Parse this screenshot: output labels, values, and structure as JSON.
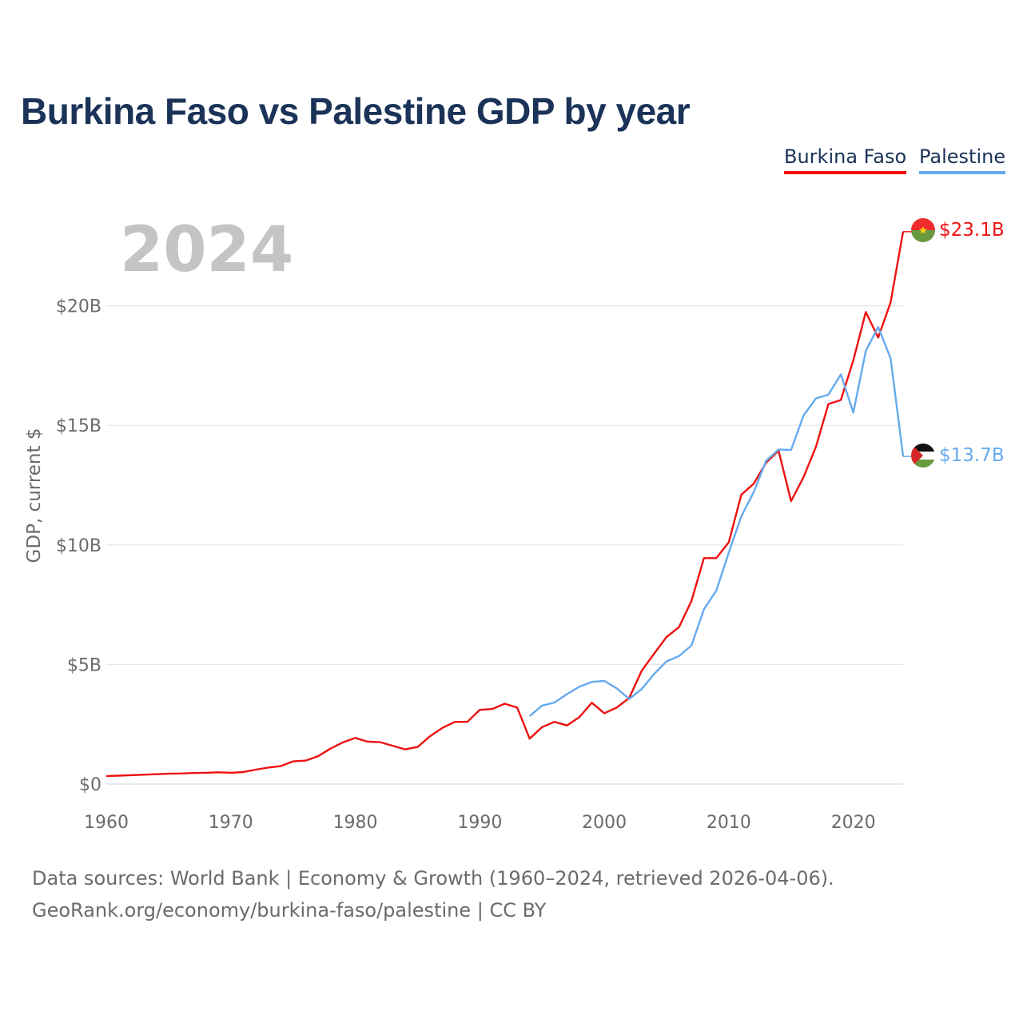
{
  "chart_data": {
    "type": "line",
    "title": "Burkina Faso vs Palestine GDP by year",
    "ylabel": "GDP, current $",
    "xlabel": "",
    "year_label": "2024",
    "xlim": [
      1960,
      2024
    ],
    "ylim": [
      0,
      25
    ],
    "y_ticks": [
      {
        "value": 0,
        "label": "$0"
      },
      {
        "value": 5,
        "label": "$5B"
      },
      {
        "value": 10,
        "label": "$10B"
      },
      {
        "value": 15,
        "label": "$15B"
      },
      {
        "value": 20,
        "label": "$20B"
      }
    ],
    "x_ticks": [
      {
        "value": 1960,
        "label": "1960"
      },
      {
        "value": 1970,
        "label": "1970"
      },
      {
        "value": 1980,
        "label": "1980"
      },
      {
        "value": 1990,
        "label": "1990"
      },
      {
        "value": 2000,
        "label": "2000"
      },
      {
        "value": 2010,
        "label": "2010"
      },
      {
        "value": 2020,
        "label": "2020"
      }
    ],
    "grid": true,
    "series": [
      {
        "name": "Burkina Faso",
        "color": "#ee1111",
        "end_label": "$23.1B",
        "flag": "burkina-faso-flag",
        "x": [
          1960,
          1961,
          1962,
          1963,
          1964,
          1965,
          1966,
          1967,
          1968,
          1969,
          1970,
          1971,
          1972,
          1973,
          1974,
          1975,
          1976,
          1977,
          1978,
          1979,
          1980,
          1981,
          1982,
          1983,
          1984,
          1985,
          1986,
          1987,
          1988,
          1989,
          1990,
          1991,
          1992,
          1993,
          1994,
          1995,
          1996,
          1997,
          1998,
          1999,
          2000,
          2001,
          2002,
          2003,
          2004,
          2005,
          2006,
          2007,
          2008,
          2009,
          2010,
          2011,
          2012,
          2013,
          2014,
          2015,
          2016,
          2017,
          2018,
          2019,
          2020,
          2021,
          2022,
          2023,
          2024
        ],
        "values": [
          0.33,
          0.35,
          0.37,
          0.39,
          0.41,
          0.43,
          0.44,
          0.46,
          0.47,
          0.49,
          0.47,
          0.5,
          0.6,
          0.69,
          0.75,
          0.95,
          0.98,
          1.16,
          1.48,
          1.74,
          1.93,
          1.77,
          1.75,
          1.6,
          1.45,
          1.55,
          2.0,
          2.35,
          2.6,
          2.6,
          3.1,
          3.14,
          3.36,
          3.2,
          1.9,
          2.38,
          2.6,
          2.45,
          2.8,
          3.4,
          2.96,
          3.2,
          3.6,
          4.74,
          5.45,
          6.15,
          6.56,
          7.66,
          9.45,
          9.45,
          10.11,
          12.1,
          12.56,
          13.44,
          13.94,
          11.83,
          12.83,
          14.11,
          15.89,
          16.06,
          17.72,
          19.74,
          18.67,
          20.15,
          23.1
        ]
      },
      {
        "name": "Palestine",
        "color": "#66aaee",
        "end_label": "$13.7B",
        "flag": "palestine-flag",
        "x": [
          1994,
          1995,
          1996,
          1997,
          1998,
          1999,
          2000,
          2001,
          2002,
          2003,
          2004,
          2005,
          2006,
          2007,
          2008,
          2009,
          2010,
          2011,
          2012,
          2013,
          2014,
          2015,
          2016,
          2017,
          2018,
          2019,
          2020,
          2021,
          2022,
          2023,
          2024
        ],
        "values": [
          2.84,
          3.28,
          3.41,
          3.76,
          4.07,
          4.27,
          4.31,
          4.0,
          3.56,
          3.97,
          4.6,
          5.13,
          5.35,
          5.8,
          7.31,
          8.09,
          9.68,
          11.19,
          12.21,
          13.52,
          13.99,
          13.97,
          15.41,
          16.13,
          16.28,
          17.13,
          15.53,
          18.11,
          19.11,
          17.8,
          13.7
        ]
      }
    ]
  },
  "sources": {
    "line1": "Data sources: World Bank | Economy & Growth (1960–2024, retrieved 2026-04-06).",
    "line2": "GeoRank.org/economy/burkina-faso/palestine | CC BY"
  }
}
